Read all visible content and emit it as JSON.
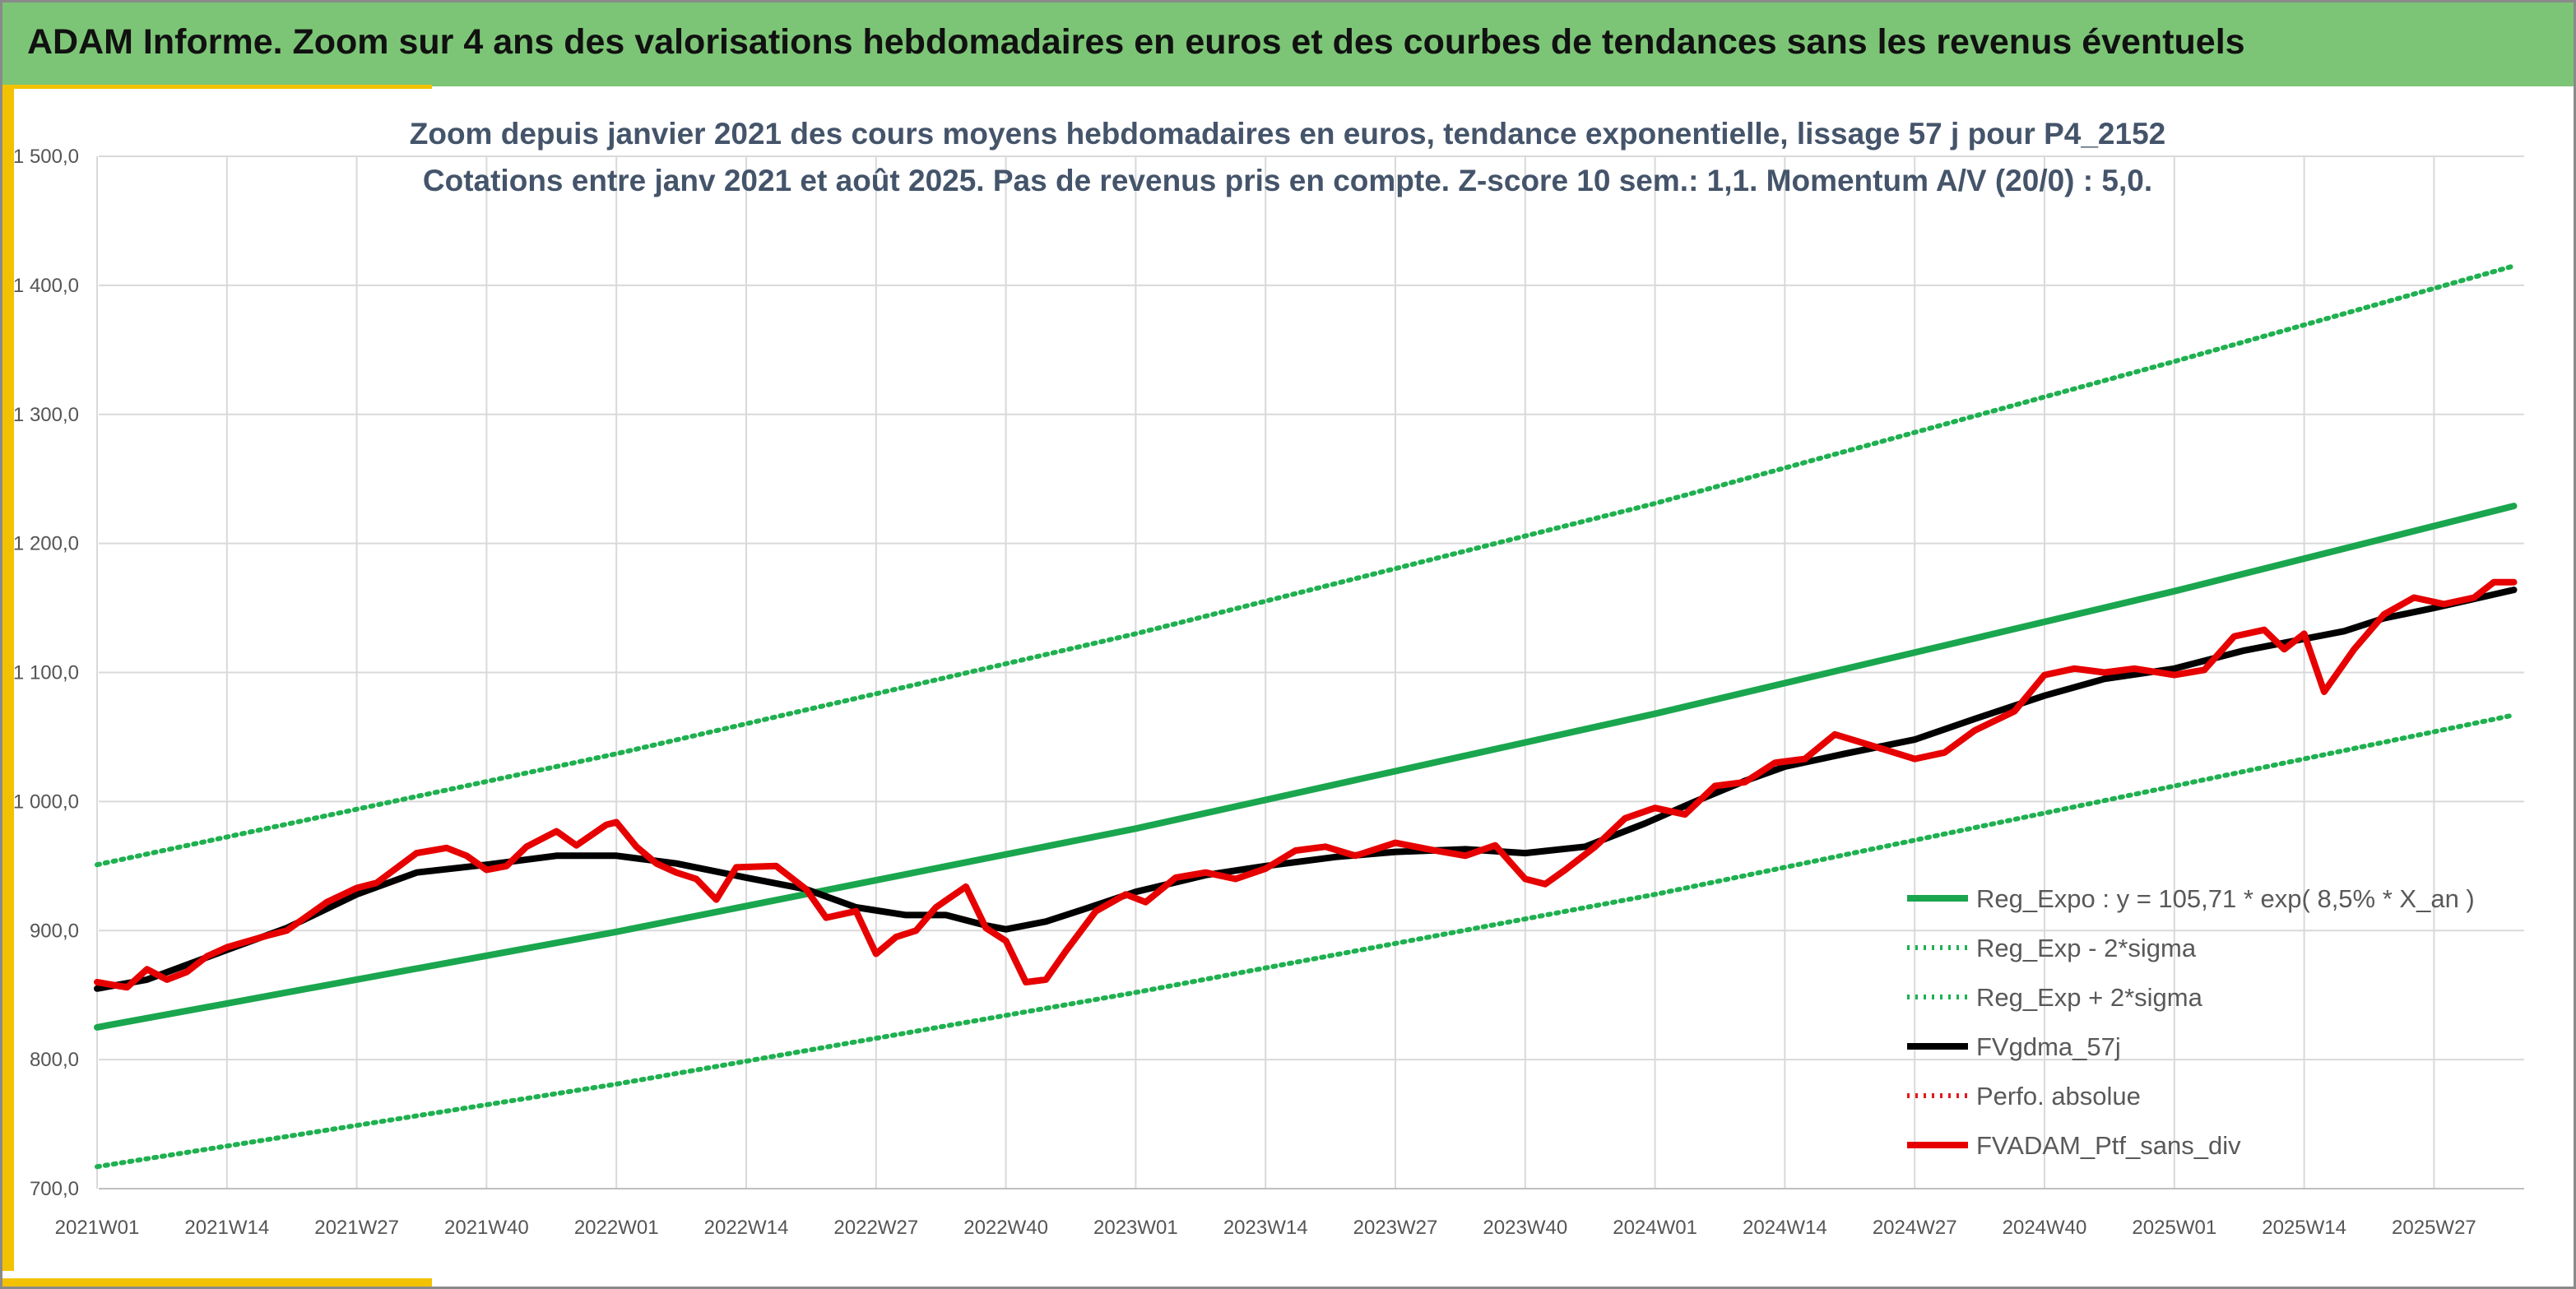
{
  "page": {
    "header_title": "ADAM Informe. Zoom sur 4 ans des valorisations hebdomadaires en euros et des courbes de tendances sans les revenus éventuels"
  },
  "chart_data": {
    "type": "line",
    "title": "Zoom depuis janvier 2021 des cours moyens hebdomadaires en euros, tendance exponentielle, lissage 57 j pour P4_2152",
    "subtitle": "Cotations entre janv 2021 et août 2025. Pas de revenus pris en compte. Z-score 10 sem.: 1,1. Momentum A/V (20/0) : 5,0.",
    "xlabel": "",
    "ylabel": "",
    "ylim": [
      700,
      1500
    ],
    "y_ticks": [
      "700,0",
      "800,0",
      "900,0",
      "1 000,0",
      "1 100,0",
      "1 200,0",
      "1 300,0",
      "1 400,0",
      "1 500,0"
    ],
    "x_ticks": [
      "2021W01",
      "2021W14",
      "2021W27",
      "2021W40",
      "2022W01",
      "2022W14",
      "2022W27",
      "2022W40",
      "2023W01",
      "2023W14",
      "2023W27",
      "2023W40",
      "2024W01",
      "2024W14",
      "2024W27",
      "2024W40",
      "2025W01",
      "2025W14",
      "2025W27"
    ],
    "x_unit": "week",
    "x_start": "2021W01",
    "x_end": "2025W35",
    "grid": true,
    "legend_position": "bottom-right",
    "series": [
      {
        "name": "Reg_Expo : y = 105,71 * exp( 8,5% *  X_an )",
        "color": "#1aa64e",
        "style": "solid",
        "points": [
          [
            "2021W01",
            825
          ],
          [
            "2022W01",
            899
          ],
          [
            "2023W01",
            979
          ],
          [
            "2024W01",
            1068
          ],
          [
            "2025W01",
            1163
          ],
          [
            "2025W35",
            1229
          ]
        ]
      },
      {
        "name": "Reg_Exp - 2*sigma",
        "color": "#1fb050",
        "style": "dotted",
        "points": [
          [
            "2021W01",
            717
          ],
          [
            "2022W01",
            781
          ],
          [
            "2023W01",
            852
          ],
          [
            "2024W01",
            928
          ],
          [
            "2025W01",
            1012
          ],
          [
            "2025W35",
            1067
          ]
        ]
      },
      {
        "name": "Reg_Exp + 2*sigma",
        "color": "#1fb050",
        "style": "dotted",
        "points": [
          [
            "2021W01",
            951
          ],
          [
            "2022W01",
            1037
          ],
          [
            "2023W01",
            1130
          ],
          [
            "2024W01",
            1231
          ],
          [
            "2025W01",
            1341
          ],
          [
            "2025W35",
            1415
          ]
        ]
      },
      {
        "name": "FVgdma_57j",
        "color": "#000000",
        "style": "solid",
        "points": [
          [
            "2021W01",
            855
          ],
          [
            "2021W06",
            862
          ],
          [
            "2021W14",
            885
          ],
          [
            "2021W20",
            902
          ],
          [
            "2021W27",
            928
          ],
          [
            "2021W33",
            945
          ],
          [
            "2021W40",
            951
          ],
          [
            "2021W47",
            958
          ],
          [
            "2022W01",
            958
          ],
          [
            "2022W07",
            952
          ],
          [
            "2022W14",
            941
          ],
          [
            "2022W20",
            932
          ],
          [
            "2022W25",
            918
          ],
          [
            "2022W30",
            912
          ],
          [
            "2022W34",
            912
          ],
          [
            "2022W38",
            904
          ],
          [
            "2022W40",
            901
          ],
          [
            "2022W44",
            907
          ],
          [
            "2022W48",
            917
          ],
          [
            "2023W01",
            930
          ],
          [
            "2023W08",
            943
          ],
          [
            "2023W14",
            950
          ],
          [
            "2023W21",
            957
          ],
          [
            "2023W27",
            961
          ],
          [
            "2023W34",
            963
          ],
          [
            "2023W40",
            960
          ],
          [
            "2023W46",
            965
          ],
          [
            "2023W52",
            983
          ],
          [
            "2024W05",
            1000
          ],
          [
            "2024W10",
            1016
          ],
          [
            "2024W14",
            1027
          ],
          [
            "2024W20",
            1037
          ],
          [
            "2024W27",
            1048
          ],
          [
            "2024W33",
            1064
          ],
          [
            "2024W40",
            1082
          ],
          [
            "2024W46",
            1095
          ],
          [
            "2025W01",
            1103
          ],
          [
            "2025W08",
            1117
          ],
          [
            "2025W14",
            1126
          ],
          [
            "2025W18",
            1132
          ],
          [
            "2025W22",
            1142
          ],
          [
            "2025W27",
            1150
          ],
          [
            "2025W31",
            1157
          ],
          [
            "2025W35",
            1164
          ]
        ]
      },
      {
        "name": "Perfo. absolue",
        "color": "#e31a1c",
        "style": "dotted",
        "points": []
      },
      {
        "name": "FVADAM_Ptf_sans_div",
        "color": "#e60000",
        "style": "solid",
        "points": [
          [
            "2021W01",
            860
          ],
          [
            "2021W04",
            856
          ],
          [
            "2021W06",
            870
          ],
          [
            "2021W08",
            862
          ],
          [
            "2021W10",
            868
          ],
          [
            "2021W12",
            880
          ],
          [
            "2021W14",
            887
          ],
          [
            "2021W18",
            896
          ],
          [
            "2021W20",
            900
          ],
          [
            "2021W24",
            922
          ],
          [
            "2021W27",
            933
          ],
          [
            "2021W29",
            937
          ],
          [
            "2021W33",
            960
          ],
          [
            "2021W36",
            964
          ],
          [
            "2021W38",
            958
          ],
          [
            "2021W40",
            947
          ],
          [
            "2021W42",
            950
          ],
          [
            "2021W44",
            965
          ],
          [
            "2021W47",
            977
          ],
          [
            "2021W49",
            966
          ],
          [
            "2021W52",
            982
          ],
          [
            "2022W01",
            984
          ],
          [
            "2022W03",
            965
          ],
          [
            "2022W05",
            952
          ],
          [
            "2022W07",
            945
          ],
          [
            "2022W09",
            940
          ],
          [
            "2022W11",
            924
          ],
          [
            "2022W13",
            949
          ],
          [
            "2022W17",
            950
          ],
          [
            "2022W20",
            932
          ],
          [
            "2022W22",
            910
          ],
          [
            "2022W25",
            915
          ],
          [
            "2022W27",
            882
          ],
          [
            "2022W29",
            895
          ],
          [
            "2022W31",
            900
          ],
          [
            "2022W33",
            918
          ],
          [
            "2022W36",
            934
          ],
          [
            "2022W38",
            902
          ],
          [
            "2022W40",
            892
          ],
          [
            "2022W42",
            860
          ],
          [
            "2022W44",
            862
          ],
          [
            "2022W46",
            884
          ],
          [
            "2022W49",
            915
          ],
          [
            "2022W52",
            928
          ],
          [
            "2023W02",
            922
          ],
          [
            "2023W05",
            941
          ],
          [
            "2023W08",
            945
          ],
          [
            "2023W11",
            940
          ],
          [
            "2023W14",
            948
          ],
          [
            "2023W17",
            962
          ],
          [
            "2023W20",
            965
          ],
          [
            "2023W23",
            958
          ],
          [
            "2023W27",
            968
          ],
          [
            "2023W31",
            962
          ],
          [
            "2023W34",
            958
          ],
          [
            "2023W37",
            966
          ],
          [
            "2023W40",
            940
          ],
          [
            "2023W42",
            936
          ],
          [
            "2023W44",
            947
          ],
          [
            "2023W47",
            965
          ],
          [
            "2023W50",
            987
          ],
          [
            "2024W01",
            995
          ],
          [
            "2024W04",
            990
          ],
          [
            "2024W07",
            1012
          ],
          [
            "2024W10",
            1015
          ],
          [
            "2024W13",
            1030
          ],
          [
            "2024W16",
            1033
          ],
          [
            "2024W19",
            1052
          ],
          [
            "2024W22",
            1045
          ],
          [
            "2024W27",
            1033
          ],
          [
            "2024W30",
            1038
          ],
          [
            "2024W33",
            1055
          ],
          [
            "2024W37",
            1070
          ],
          [
            "2024W40",
            1098
          ],
          [
            "2024W43",
            1103
          ],
          [
            "2024W46",
            1100
          ],
          [
            "2024W49",
            1103
          ],
          [
            "2025W01",
            1098
          ],
          [
            "2025W04",
            1102
          ],
          [
            "2025W07",
            1128
          ],
          [
            "2025W10",
            1133
          ],
          [
            "2025W12",
            1118
          ],
          [
            "2025W14",
            1130
          ],
          [
            "2025W16",
            1085
          ],
          [
            "2025W19",
            1118
          ],
          [
            "2025W22",
            1145
          ],
          [
            "2025W25",
            1158
          ],
          [
            "2025W28",
            1153
          ],
          [
            "2025W31",
            1158
          ],
          [
            "2025W33",
            1170
          ],
          [
            "2025W35",
            1170
          ]
        ]
      }
    ]
  }
}
